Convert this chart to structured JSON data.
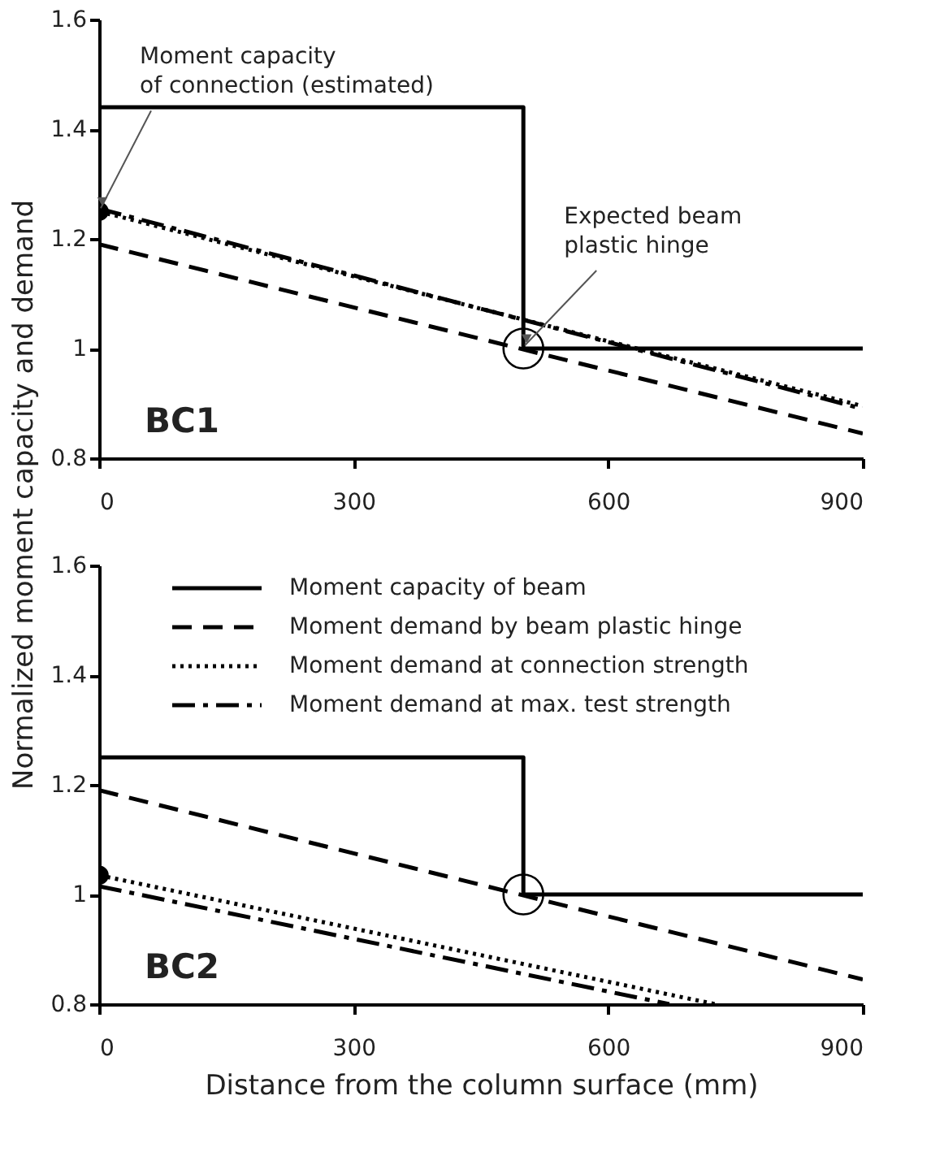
{
  "chart_data": [
    {
      "type": "line",
      "ylabel": "Normalized moment capacity and demand",
      "xlim": [
        0,
        900
      ],
      "xticks": [
        0,
        300,
        600,
        900
      ],
      "ylim": [
        0.8,
        1.6
      ],
      "yticks": [
        0.8,
        1,
        1.2,
        1.4,
        1.6
      ],
      "grid": false,
      "annotations": [
        {
          "text": "Moment capacity\nof connection (estimated)",
          "x": 0,
          "y": 1.25
        },
        {
          "text": "Expected beam\nplastic hinge",
          "x": 500,
          "y": 1.0
        },
        "BC1"
      ],
      "series": [
        {
          "color": "#000000",
          "line_style": "solid",
          "x": [
            0,
            500,
            500,
            900
          ],
          "values": [
            1.44,
            1.44,
            1.0,
            1.0
          ]
        },
        {
          "color": "#000000",
          "line_style": "dashed",
          "x": [
            0,
            900
          ],
          "values": [
            1.19,
            0.845
          ]
        },
        {
          "color": "#000000",
          "line_style": "dotted",
          "x": [
            0,
            900
          ],
          "values": [
            1.25,
            0.895
          ]
        },
        {
          "color": "#000000",
          "line_style": "dashdot",
          "x": [
            0,
            900
          ],
          "values": [
            1.255,
            0.89
          ]
        },
        {
          "type": "scatter",
          "marker": "circle",
          "color": "#000000",
          "x": [
            0
          ],
          "values": [
            1.25
          ]
        },
        {
          "type": "scatter",
          "marker": "circle",
          "x": [
            500
          ],
          "values": [
            1.0
          ]
        }
      ]
    },
    {
      "type": "line",
      "xlabel": "Distance from the column surface (mm)",
      "xlim": [
        0,
        900
      ],
      "xticks": [
        0,
        300,
        600,
        900
      ],
      "ylim": [
        0.8,
        1.6
      ],
      "yticks": [
        0.8,
        1,
        1.2,
        1.4,
        1.6
      ],
      "grid": false,
      "legend": "top",
      "annotations": [
        "BC2"
      ],
      "series": [
        {
          "name": "Moment capacity of beam",
          "color": "#000000",
          "line_style": "solid",
          "x": [
            0,
            500,
            500,
            900
          ],
          "values": [
            1.25,
            1.25,
            1.0,
            1.0
          ]
        },
        {
          "name": "Moment demand by beam plastic hinge",
          "color": "#000000",
          "line_style": "dashed",
          "x": [
            0,
            900
          ],
          "values": [
            1.19,
            0.845
          ]
        },
        {
          "name": "Moment demand at connection strength",
          "color": "#000000",
          "line_style": "dotted",
          "x": [
            0,
            726
          ],
          "values": [
            1.035,
            0.8
          ]
        },
        {
          "name": "Moment demand at max. test strength",
          "color": "#000000",
          "line_style": "dashdot",
          "x": [
            0,
            672
          ],
          "values": [
            1.015,
            0.8
          ]
        },
        {
          "type": "scatter",
          "marker": "circle",
          "color": "#000000",
          "x": [
            0
          ],
          "values": [
            1.035
          ]
        },
        {
          "type": "scatter",
          "marker": "circle",
          "x": [
            500
          ],
          "values": [
            1.0
          ]
        }
      ]
    }
  ]
}
